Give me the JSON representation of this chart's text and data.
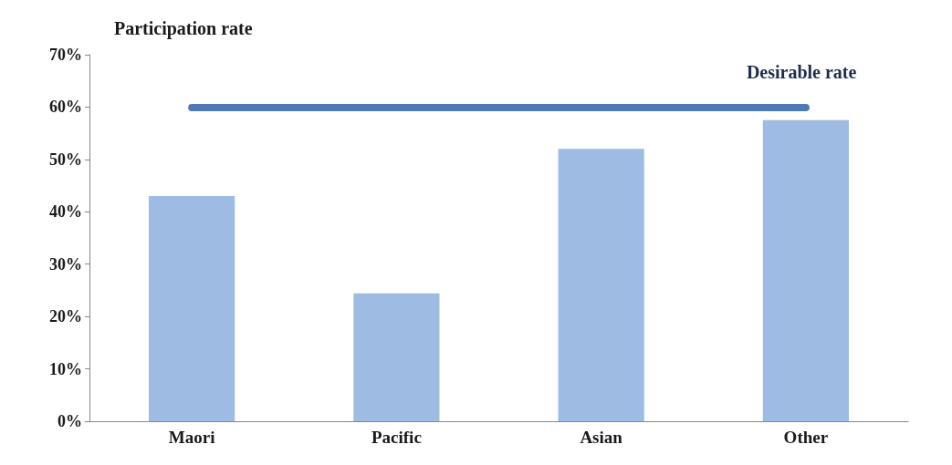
{
  "chart_data": {
    "type": "bar",
    "title": "Participation rate",
    "categories": [
      "Maori",
      "Pacific",
      "Asian",
      "Other"
    ],
    "values": [
      43,
      24.4,
      52,
      57.5
    ],
    "color": "#9dbbe3",
    "ylim": [
      0,
      70
    ],
    "yticks": [
      {
        "value": 0,
        "label": "0%"
      },
      {
        "value": 10,
        "label": "10%"
      },
      {
        "value": 20,
        "label": "20%"
      },
      {
        "value": 30,
        "label": "30%"
      },
      {
        "value": 40,
        "label": "40%"
      },
      {
        "value": 50,
        "label": "50%"
      },
      {
        "value": 60,
        "label": "60%"
      },
      {
        "value": 70,
        "label": "70%"
      }
    ],
    "ref_lines": [
      {
        "axis": "y",
        "value": 60,
        "label": "Desirable rate",
        "color": "#4f79b5"
      }
    ],
    "grid": false
  }
}
